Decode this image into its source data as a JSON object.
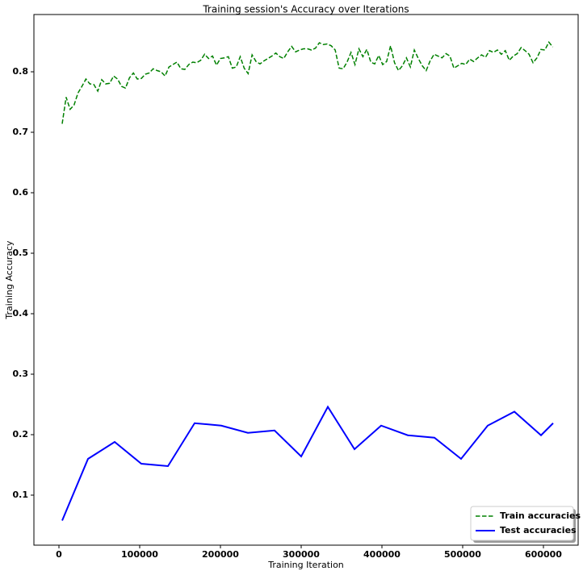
{
  "chart_data": {
    "type": "line",
    "title": "Training session's Accuracy over Iterations",
    "xlabel": "Training Iteration",
    "ylabel": "Training Accuracy",
    "xlim": [
      -31000,
      643000
    ],
    "ylim": [
      0.0173,
      0.8947
    ],
    "xticks": [
      0,
      100000,
      200000,
      300000,
      400000,
      500000,
      600000
    ],
    "yticks": [
      0.1,
      0.2,
      0.3,
      0.4,
      0.5,
      0.6,
      0.7,
      0.8
    ],
    "legend": "lower right",
    "series": [
      {
        "name": "Train accuracies",
        "color": "#008000",
        "dash": true,
        "x": [
          4000,
          8900,
          13800,
          18700,
          23600,
          28500,
          33400,
          38300,
          43200,
          48100,
          53000,
          57900,
          62800,
          67700,
          72600,
          77500,
          82400,
          87300,
          92200,
          97100,
          102000,
          106900,
          111800,
          116700,
          121600,
          126500,
          131400,
          136300,
          141200,
          146100,
          151000,
          155900,
          160800,
          165700,
          170600,
          175500,
          180400,
          185300,
          190200,
          195100,
          200000,
          204900,
          209800,
          214700,
          219600,
          224500,
          229400,
          234300,
          239200,
          244100,
          249000,
          253900,
          258800,
          263700,
          268600,
          273500,
          278400,
          283300,
          288200,
          293100,
          298000,
          302900,
          307800,
          312700,
          317600,
          322500,
          327400,
          332300,
          337200,
          342100,
          347000,
          351900,
          356800,
          361700,
          366600,
          371500,
          376400,
          381300,
          386200,
          391100,
          396000,
          400900,
          405800,
          410700,
          415600,
          420500,
          425400,
          430300,
          435200,
          440100,
          445000,
          449900,
          454800,
          459700,
          464600,
          469500,
          474400,
          479300,
          484200,
          489100,
          494000,
          498900,
          503800,
          508700,
          513600,
          518500,
          523400,
          528300,
          533200,
          538100,
          543000,
          547900,
          552800,
          557700,
          562600,
          567500,
          572400,
          577300,
          582200,
          587100,
          592000,
          596900,
          601800,
          606700,
          611600
        ],
        "values": [
          0.714,
          0.758,
          0.738,
          0.745,
          0.765,
          0.776,
          0.788,
          0.78,
          0.779,
          0.768,
          0.787,
          0.78,
          0.781,
          0.793,
          0.788,
          0.776,
          0.773,
          0.79,
          0.798,
          0.788,
          0.789,
          0.796,
          0.798,
          0.805,
          0.802,
          0.8,
          0.793,
          0.808,
          0.812,
          0.816,
          0.805,
          0.804,
          0.812,
          0.816,
          0.815,
          0.819,
          0.829,
          0.822,
          0.826,
          0.811,
          0.822,
          0.823,
          0.825,
          0.806,
          0.808,
          0.825,
          0.806,
          0.797,
          0.828,
          0.817,
          0.813,
          0.818,
          0.822,
          0.826,
          0.831,
          0.825,
          0.822,
          0.833,
          0.842,
          0.833,
          0.836,
          0.838,
          0.838,
          0.836,
          0.839,
          0.848,
          0.845,
          0.846,
          0.843,
          0.836,
          0.806,
          0.805,
          0.816,
          0.832,
          0.812,
          0.838,
          0.825,
          0.837,
          0.816,
          0.813,
          0.827,
          0.812,
          0.817,
          0.843,
          0.815,
          0.802,
          0.81,
          0.823,
          0.808,
          0.836,
          0.822,
          0.81,
          0.802,
          0.818,
          0.829,
          0.826,
          0.823,
          0.83,
          0.826,
          0.806,
          0.81,
          0.814,
          0.812,
          0.821,
          0.817,
          0.823,
          0.828,
          0.824,
          0.835,
          0.832,
          0.836,
          0.829,
          0.835,
          0.819,
          0.826,
          0.83,
          0.84,
          0.835,
          0.829,
          0.815,
          0.823,
          0.837,
          0.836,
          0.849,
          0.841
        ]
      },
      {
        "name": "Test accuracies",
        "color": "#0000ff",
        "dash": false,
        "x": [
          4000,
          36000,
          69000,
          102000,
          135000,
          168000,
          201000,
          234000,
          267000,
          300000,
          333000,
          366000,
          399000,
          432000,
          465000,
          498000,
          531000,
          564000,
          597000,
          612000
        ],
        "values": [
          0.058,
          0.16,
          0.188,
          0.152,
          0.148,
          0.219,
          0.215,
          0.203,
          0.207,
          0.164,
          0.246,
          0.176,
          0.215,
          0.199,
          0.195,
          0.16,
          0.215,
          0.238,
          0.199,
          0.219
        ]
      }
    ]
  }
}
